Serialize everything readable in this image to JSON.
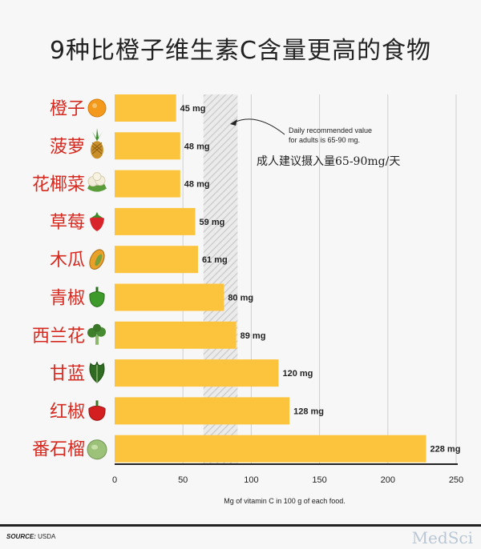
{
  "title": "9种比橙子维生素C含量更高的食物",
  "chart_data": {
    "type": "bar",
    "orientation": "horizontal",
    "categories": [
      "橙子",
      "菠萝",
      "花椰菜",
      "草莓",
      "木瓜",
      "青椒",
      "西兰花",
      "甘蓝",
      "红椒",
      "番石榴"
    ],
    "values": [
      45,
      48,
      48,
      59,
      61,
      80,
      89,
      120,
      128,
      228
    ],
    "value_labels": [
      "45 mg",
      "48 mg",
      "48 mg",
      "59 mg",
      "61 mg",
      "80 mg",
      "89 mg",
      "120 mg",
      "128 mg",
      "228 mg"
    ],
    "xlabel": "Mg of vitamin C in 100 g of each food.",
    "xlim": [
      0,
      250
    ],
    "xticks": [
      "0",
      "50",
      "100",
      "150",
      "200",
      "250"
    ],
    "xtick_values": [
      0,
      50,
      100,
      150,
      200,
      250
    ],
    "grid": "vertical",
    "recommended_range": [
      65,
      90
    ],
    "annotation_line1": "Daily recommended value",
    "annotation_line2": "for adults is 65-90 mg.",
    "annotation_cn": "成人建议摄入量65-90mg/天",
    "bar_color": "#fcc43c",
    "label_color": "#d62a20",
    "icons": [
      "orange-icon",
      "pineapple-icon",
      "cauliflower-icon",
      "strawberry-icon",
      "papaya-icon",
      "green-pepper-icon",
      "broccoli-icon",
      "kale-icon",
      "red-pepper-icon",
      "guava-icon"
    ]
  },
  "footer": {
    "source_label": "SOURCE:",
    "source_value": "USDA",
    "watermark": "MedSci"
  }
}
